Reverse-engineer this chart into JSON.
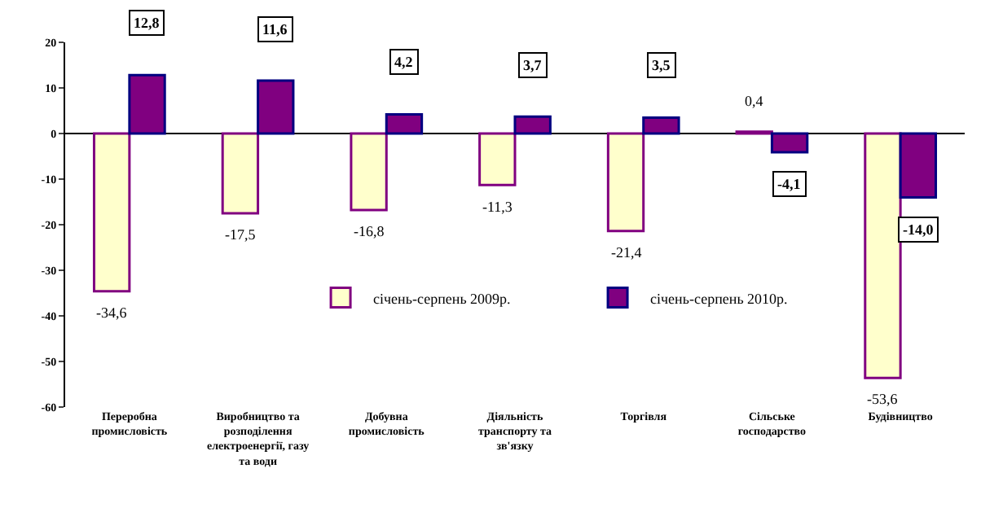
{
  "chart_data": {
    "type": "bar",
    "categories": [
      "Переробна промисловість",
      "Виробництво та розподілення електроенергії, газу та води",
      "Добувна промисловість",
      "Діяльність транспорту та зв'язку",
      "Торгівля",
      "Сільське господарство",
      "Будівництво"
    ],
    "series": [
      {
        "name": "січень-серпень 2009р.",
        "color": "#ffffcc",
        "values": [
          -34.6,
          -17.5,
          -16.8,
          -11.3,
          -21.4,
          0.4,
          -53.6
        ],
        "value_labels": [
          "-34,6",
          "-17,5",
          "-16,8",
          "-11,3",
          "-21,4",
          "0,4",
          "-53,6"
        ]
      },
      {
        "name": "січень-серпень 2010р.",
        "color": "#800080",
        "values": [
          12.8,
          11.6,
          4.2,
          3.7,
          3.5,
          -4.1,
          -14.0
        ],
        "value_labels": [
          "12,8",
          "11,6",
          "4,2",
          "3,7",
          "3,5",
          "-4,1",
          "-14,0"
        ]
      }
    ],
    "ylim": [
      -60,
      20
    ],
    "yticks": [
      -60,
      -50,
      -40,
      -30,
      -20,
      -10,
      0,
      10,
      20
    ],
    "legend": "bottom"
  }
}
